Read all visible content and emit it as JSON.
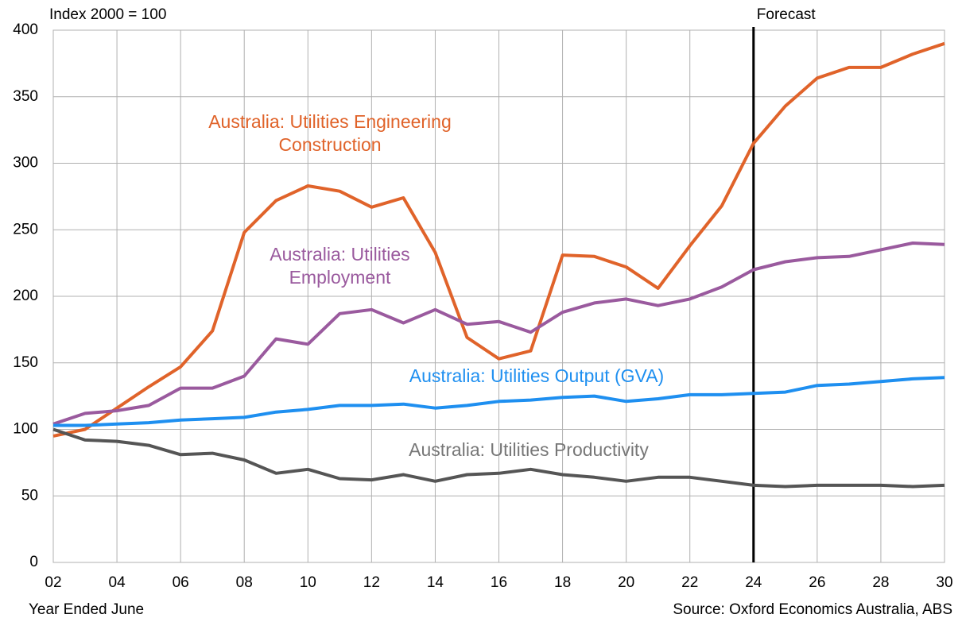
{
  "chart_data": {
    "type": "line",
    "y_axis_label": "Index 2000 = 100",
    "x_axis_label": "Year Ended June",
    "source": "Source: Oxford Economics Australia, ABS",
    "vline": {
      "category": "24",
      "label": "Forecast",
      "color": "#000000"
    },
    "categories": [
      "02",
      null,
      "04",
      null,
      "06",
      null,
      "08",
      null,
      "10",
      null,
      "12",
      null,
      "14",
      null,
      "16",
      null,
      "18",
      null,
      "20",
      null,
      "22",
      null,
      "24",
      null,
      "26",
      null,
      "28",
      null,
      "30"
    ],
    "ylim": [
      0,
      400
    ],
    "yticks": [
      0,
      50,
      100,
      150,
      200,
      250,
      300,
      350,
      400
    ],
    "grid": true,
    "series": [
      {
        "name": "Australia: Utilities Engineering Construction",
        "color": "#e0632a",
        "values": [
          95,
          100,
          116,
          132,
          147,
          174,
          248,
          272,
          283,
          279,
          267,
          274,
          233,
          169,
          153,
          159,
          231,
          230,
          222,
          206,
          238,
          268,
          315,
          343,
          364,
          372,
          372,
          382,
          390
        ]
      },
      {
        "name": "Australia: Utilities Employment",
        "color": "#9a5a9e",
        "values": [
          104,
          112,
          114,
          118,
          131,
          131,
          140,
          168,
          164,
          187,
          190,
          180,
          190,
          179,
          181,
          173,
          188,
          195,
          198,
          193,
          198,
          207,
          220,
          226,
          229,
          230,
          235,
          240,
          239
        ]
      },
      {
        "name": "Australia: Utilities Output (GVA)",
        "color": "#1e8ff0",
        "values": [
          103,
          103,
          104,
          105,
          107,
          108,
          109,
          113,
          115,
          118,
          118,
          119,
          116,
          118,
          121,
          122,
          124,
          125,
          121,
          123,
          126,
          126,
          127,
          128,
          133,
          134,
          136,
          138,
          139
        ]
      },
      {
        "name": "Australia: Utilities Productivity",
        "color": "#555555",
        "values": [
          100,
          92,
          91,
          88,
          81,
          82,
          77,
          67,
          70,
          63,
          62,
          66,
          61,
          66,
          67,
          70,
          66,
          64,
          61,
          64,
          64,
          61,
          58,
          57,
          58,
          58,
          58,
          57,
          58
        ]
      }
    ]
  }
}
